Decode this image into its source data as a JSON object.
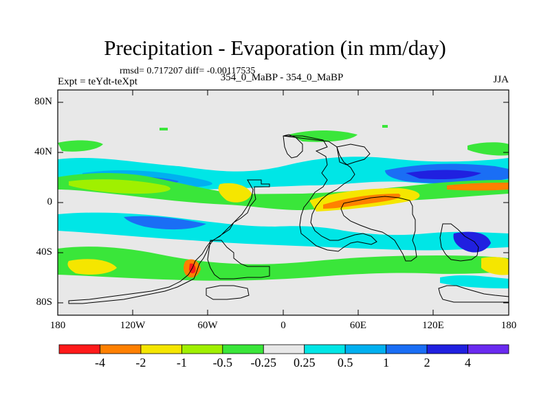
{
  "title": "Precipitation - Evaporation (in mm/day)",
  "stats_line": "rmsd= 0.717207 diff= -0.00117535",
  "left_label": "Expt = teYdt-teXpt",
  "center_label": "354_0_MaBP - 354_0_MaBP",
  "right_label": "JJA",
  "y_ticks": [
    "80N",
    "40N",
    "0",
    "40S",
    "80S"
  ],
  "x_ticks": [
    "180",
    "120W",
    "60W",
    "0",
    "60E",
    "120E",
    "180"
  ],
  "colorbar": {
    "colors": [
      "#ff1a1a",
      "#ff8000",
      "#f5e600",
      "#a0f000",
      "#3ae63a",
      "#e8e8e8",
      "#00e6e6",
      "#00b0f0",
      "#1a6ef5",
      "#2020e0",
      "#6a2af0"
    ],
    "labels": [
      "-4",
      "-2",
      "-1",
      "-0.5",
      "-0.25",
      "0.25",
      "0.5",
      "1",
      "2",
      "4"
    ]
  },
  "palette": {
    "background": "#e8e8e8",
    "neutral": "#e8e8e8",
    "light_neg": "#3ae63a",
    "mid_neg": "#a0f000",
    "strong_neg": "#f5e600",
    "stronger_neg": "#ff8000",
    "strongest_neg": "#ff1a1a",
    "light_pos": "#00e6e6",
    "mid_pos": "#00b0f0",
    "strong_pos": "#1a6ef5",
    "stronger_pos": "#2020e0"
  }
}
